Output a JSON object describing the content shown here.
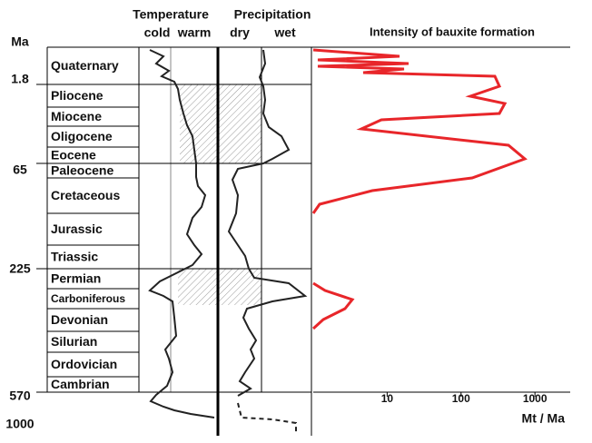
{
  "chart_data": {
    "type": "line",
    "title": "Intensity of bauxite formation",
    "xlabel": "Mt / Ma",
    "xscale": "log",
    "xlim": [
      1,
      3000
    ],
    "xticks": [
      10,
      100,
      1000
    ],
    "color": "#e8262a",
    "ylabel": "Ma",
    "age_ticks": [
      1.8,
      65,
      225,
      570,
      1000
    ],
    "periods": [
      "Quaternary",
      "Pliocene",
      "Miocene",
      "Oligocene",
      "Eocene",
      "Paleocene",
      "Cretaceous",
      "Jurassic",
      "Triassic",
      "Permian",
      "Carboniferous",
      "Devonian",
      "Silurian",
      "Ordovician",
      "Cambrian"
    ],
    "panels": [
      {
        "title": "Temperature",
        "left": "cold",
        "right": "warm"
      },
      {
        "title": "Precipitation",
        "left": "dry",
        "right": "wet"
      }
    ]
  }
}
